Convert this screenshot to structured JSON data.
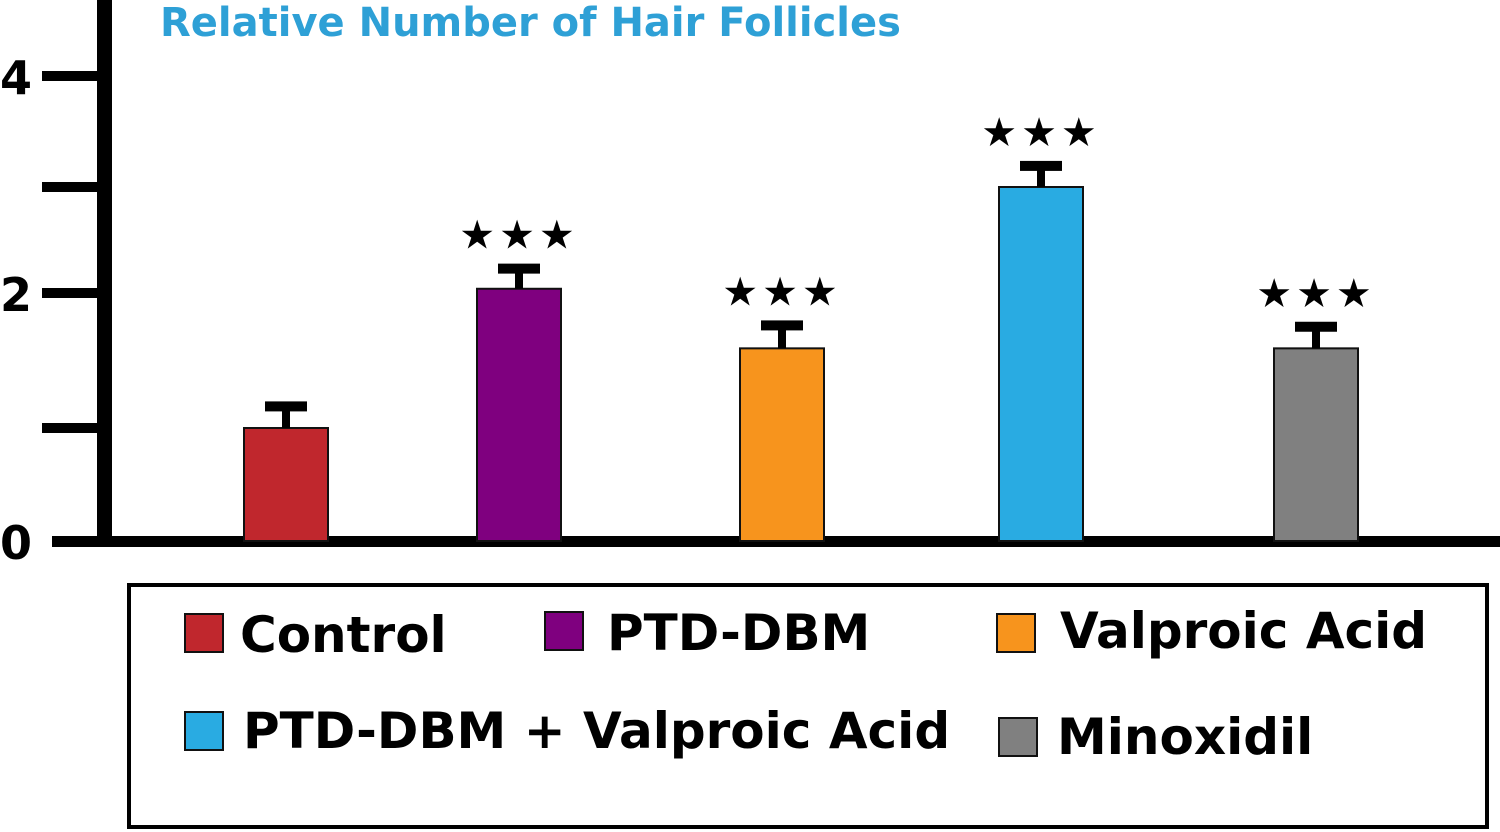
{
  "chart_data": {
    "type": "bar",
    "title": "Relative Number of Hair Follicles",
    "title_color": "#2ea0d6",
    "xlabel": "",
    "ylabel": "",
    "ylim": [
      0,
      4.2
    ],
    "yticks": [
      0,
      1,
      2,
      3,
      4
    ],
    "ytick_labels": [
      "0",
      "",
      "2",
      "",
      "4"
    ],
    "grid": false,
    "legend_position": "bottom",
    "categories": [
      "Control",
      "PTD-DBM",
      "Valproic Acid",
      "PTD-DBM + Valproic Acid",
      "Minoxidil"
    ],
    "values": [
      1.0,
      2.04,
      1.59,
      3.0,
      1.59
    ],
    "errors": [
      0.16,
      0.19,
      0.17,
      0.19,
      0.16
    ],
    "significance": [
      "",
      "★★★",
      "★★★",
      "★★★",
      "★★★"
    ],
    "colors": [
      "#c0272d",
      "#7f007f",
      "#f7941d",
      "#29abe2",
      "#808080"
    ],
    "legend": [
      "Control",
      "PTD-DBM",
      "Valproic Acid",
      "PTD-DBM + Valproic Acid",
      "Minoxidil"
    ]
  }
}
